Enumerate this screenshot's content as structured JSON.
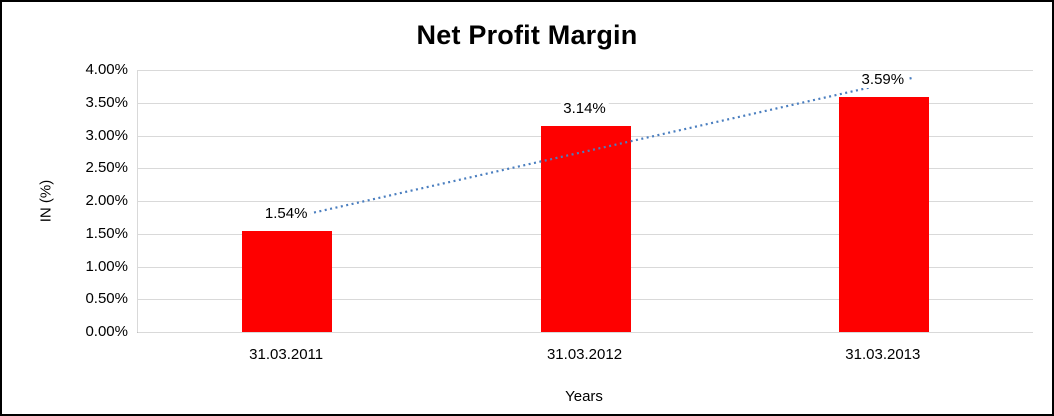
{
  "chart_data": {
    "type": "bar",
    "title": "Net Profit Margin",
    "categories": [
      "31.03.2011",
      "31.03.2012",
      "31.03.2013"
    ],
    "values": [
      1.54,
      3.14,
      3.59
    ],
    "data_labels": [
      "1.54%",
      "3.14%",
      "3.59%"
    ],
    "xlabel": "Years",
    "ylabel": "IN (%)",
    "ylim": [
      0,
      4
    ],
    "ytick_step": 0.5,
    "ytick_labels": [
      "0.00%",
      "0.50%",
      "1.00%",
      "1.50%",
      "2.00%",
      "2.50%",
      "3.00%",
      "3.50%",
      "4.00%"
    ],
    "grid": true,
    "legend": "none",
    "bar_color": "#fe0000",
    "trendline": {
      "type": "linear",
      "style": "dotted",
      "color": "#4a7ebf"
    }
  }
}
